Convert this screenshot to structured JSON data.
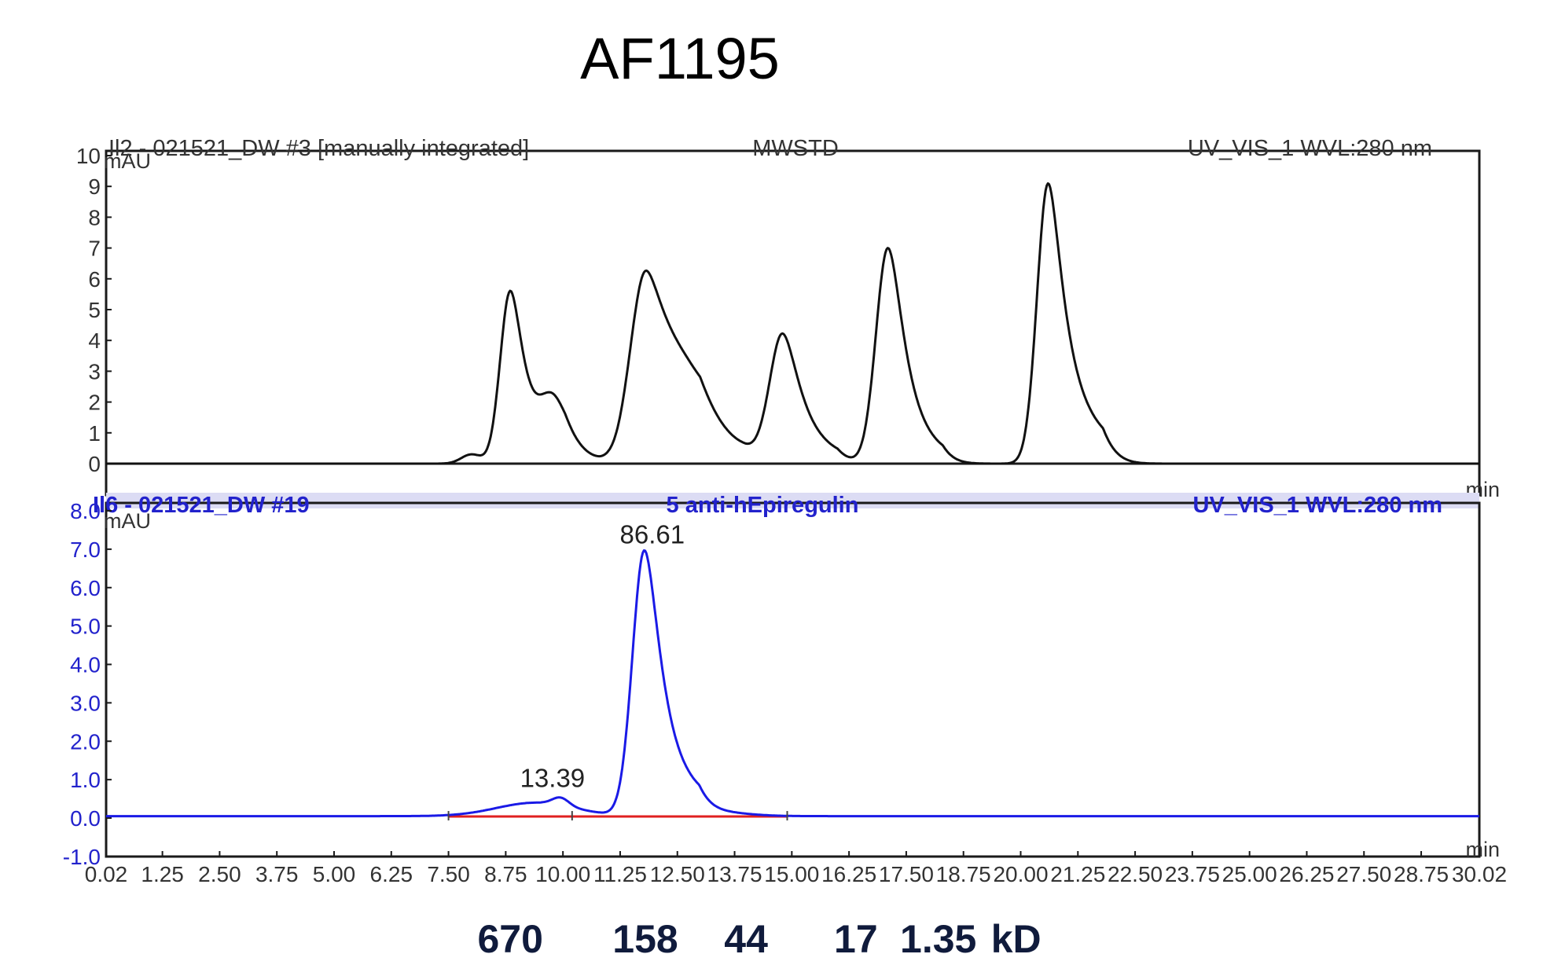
{
  "title": "AF1195",
  "colors": {
    "top_trace": "#111111",
    "bottom_trace": "#1a1ae6",
    "baseline": "#e02020",
    "axis": "#1a1a1a",
    "bottom_label": "#2222cc",
    "header_band": "#dcdcf4",
    "kd_text": "#101b3c"
  },
  "chart_data": [
    {
      "type": "line",
      "panel": "top",
      "header": {
        "left": "Il2 - 021521_DW #3 [manually integrated]",
        "center": "MWSTD",
        "right": "UV_VIS_1 WVL:280 nm"
      },
      "ylabel": "mAU",
      "xlabel": "min",
      "y_tick_labels": [
        "0",
        "1",
        "2",
        "3",
        "4",
        "5",
        "6",
        "7",
        "8",
        "9",
        "10"
      ],
      "xlim": [
        0.02,
        30.02
      ],
      "ylim": [
        -0.2,
        10
      ],
      "baseline": 0,
      "peaks": [
        {
          "center": 8.0,
          "height": 0.3,
          "width": 0.22,
          "tail": 0.0
        },
        {
          "center": 8.85,
          "height": 5.6,
          "width": 0.22,
          "tail": 0.28
        },
        {
          "center": 9.8,
          "height": 1.7,
          "width": 0.3,
          "tail": 0.2
        },
        {
          "center": 11.8,
          "height": 5.9,
          "width": 0.33,
          "tail": 0.45
        },
        {
          "center": 12.7,
          "height": 1.1,
          "width": 0.6,
          "tail": 0.4
        },
        {
          "center": 14.8,
          "height": 4.1,
          "width": 0.28,
          "tail": 0.3
        },
        {
          "center": 17.1,
          "height": 7.0,
          "width": 0.26,
          "tail": 0.28
        },
        {
          "center": 20.6,
          "height": 9.1,
          "width": 0.24,
          "tail": 0.35
        }
      ]
    },
    {
      "type": "line",
      "panel": "bottom",
      "header": {
        "left": "Il6 - 021521_DW #19",
        "center": "5 anti-hEpiregulin",
        "right": "UV_VIS_1 WVL:280 nm"
      },
      "ylabel": "mAU",
      "xlabel": "min",
      "y_tick_labels": [
        "-1.0",
        "0.0",
        "1.0",
        "2.0",
        "3.0",
        "4.0",
        "5.0",
        "6.0",
        "7.0",
        "8.0"
      ],
      "x_tick_labels": [
        "0.02",
        "1.25",
        "2.50",
        "3.75",
        "5.00",
        "6.25",
        "7.50",
        "8.75",
        "10.00",
        "11.25",
        "12.50",
        "13.75",
        "15.00",
        "16.25",
        "17.50",
        "18.75",
        "20.00",
        "21.25",
        "22.50",
        "23.75",
        "25.00",
        "26.25",
        "27.50",
        "28.75",
        "30.02"
      ],
      "xlim": [
        0.02,
        30.02
      ],
      "ylim": [
        -1.0,
        8.2
      ],
      "baseline": 0.05,
      "integration_baseline": [
        7.5,
        14.9
      ],
      "peaks": [
        {
          "center": 9.4,
          "height": 0.35,
          "width": 0.85,
          "tail": 0.0
        },
        {
          "center": 9.95,
          "height": 0.2,
          "width": 0.18,
          "tail": 0.0
        },
        {
          "center": 11.78,
          "height": 6.9,
          "width": 0.26,
          "tail": 0.3
        },
        {
          "center": 13.2,
          "height": 0.12,
          "width": 0.7,
          "tail": 0.0
        }
      ],
      "annotations": [
        {
          "label": "86.61",
          "x": 11.78,
          "y": 6.95
        },
        {
          "label": "13.39",
          "x": 9.6,
          "y": 0.6
        }
      ]
    }
  ],
  "size_markers": {
    "labels": [
      "670",
      "158",
      "44",
      "17",
      "1.35",
      "kD"
    ],
    "x_positions": [
      8.85,
      11.8,
      14.0,
      16.4,
      18.2,
      19.9
    ]
  }
}
